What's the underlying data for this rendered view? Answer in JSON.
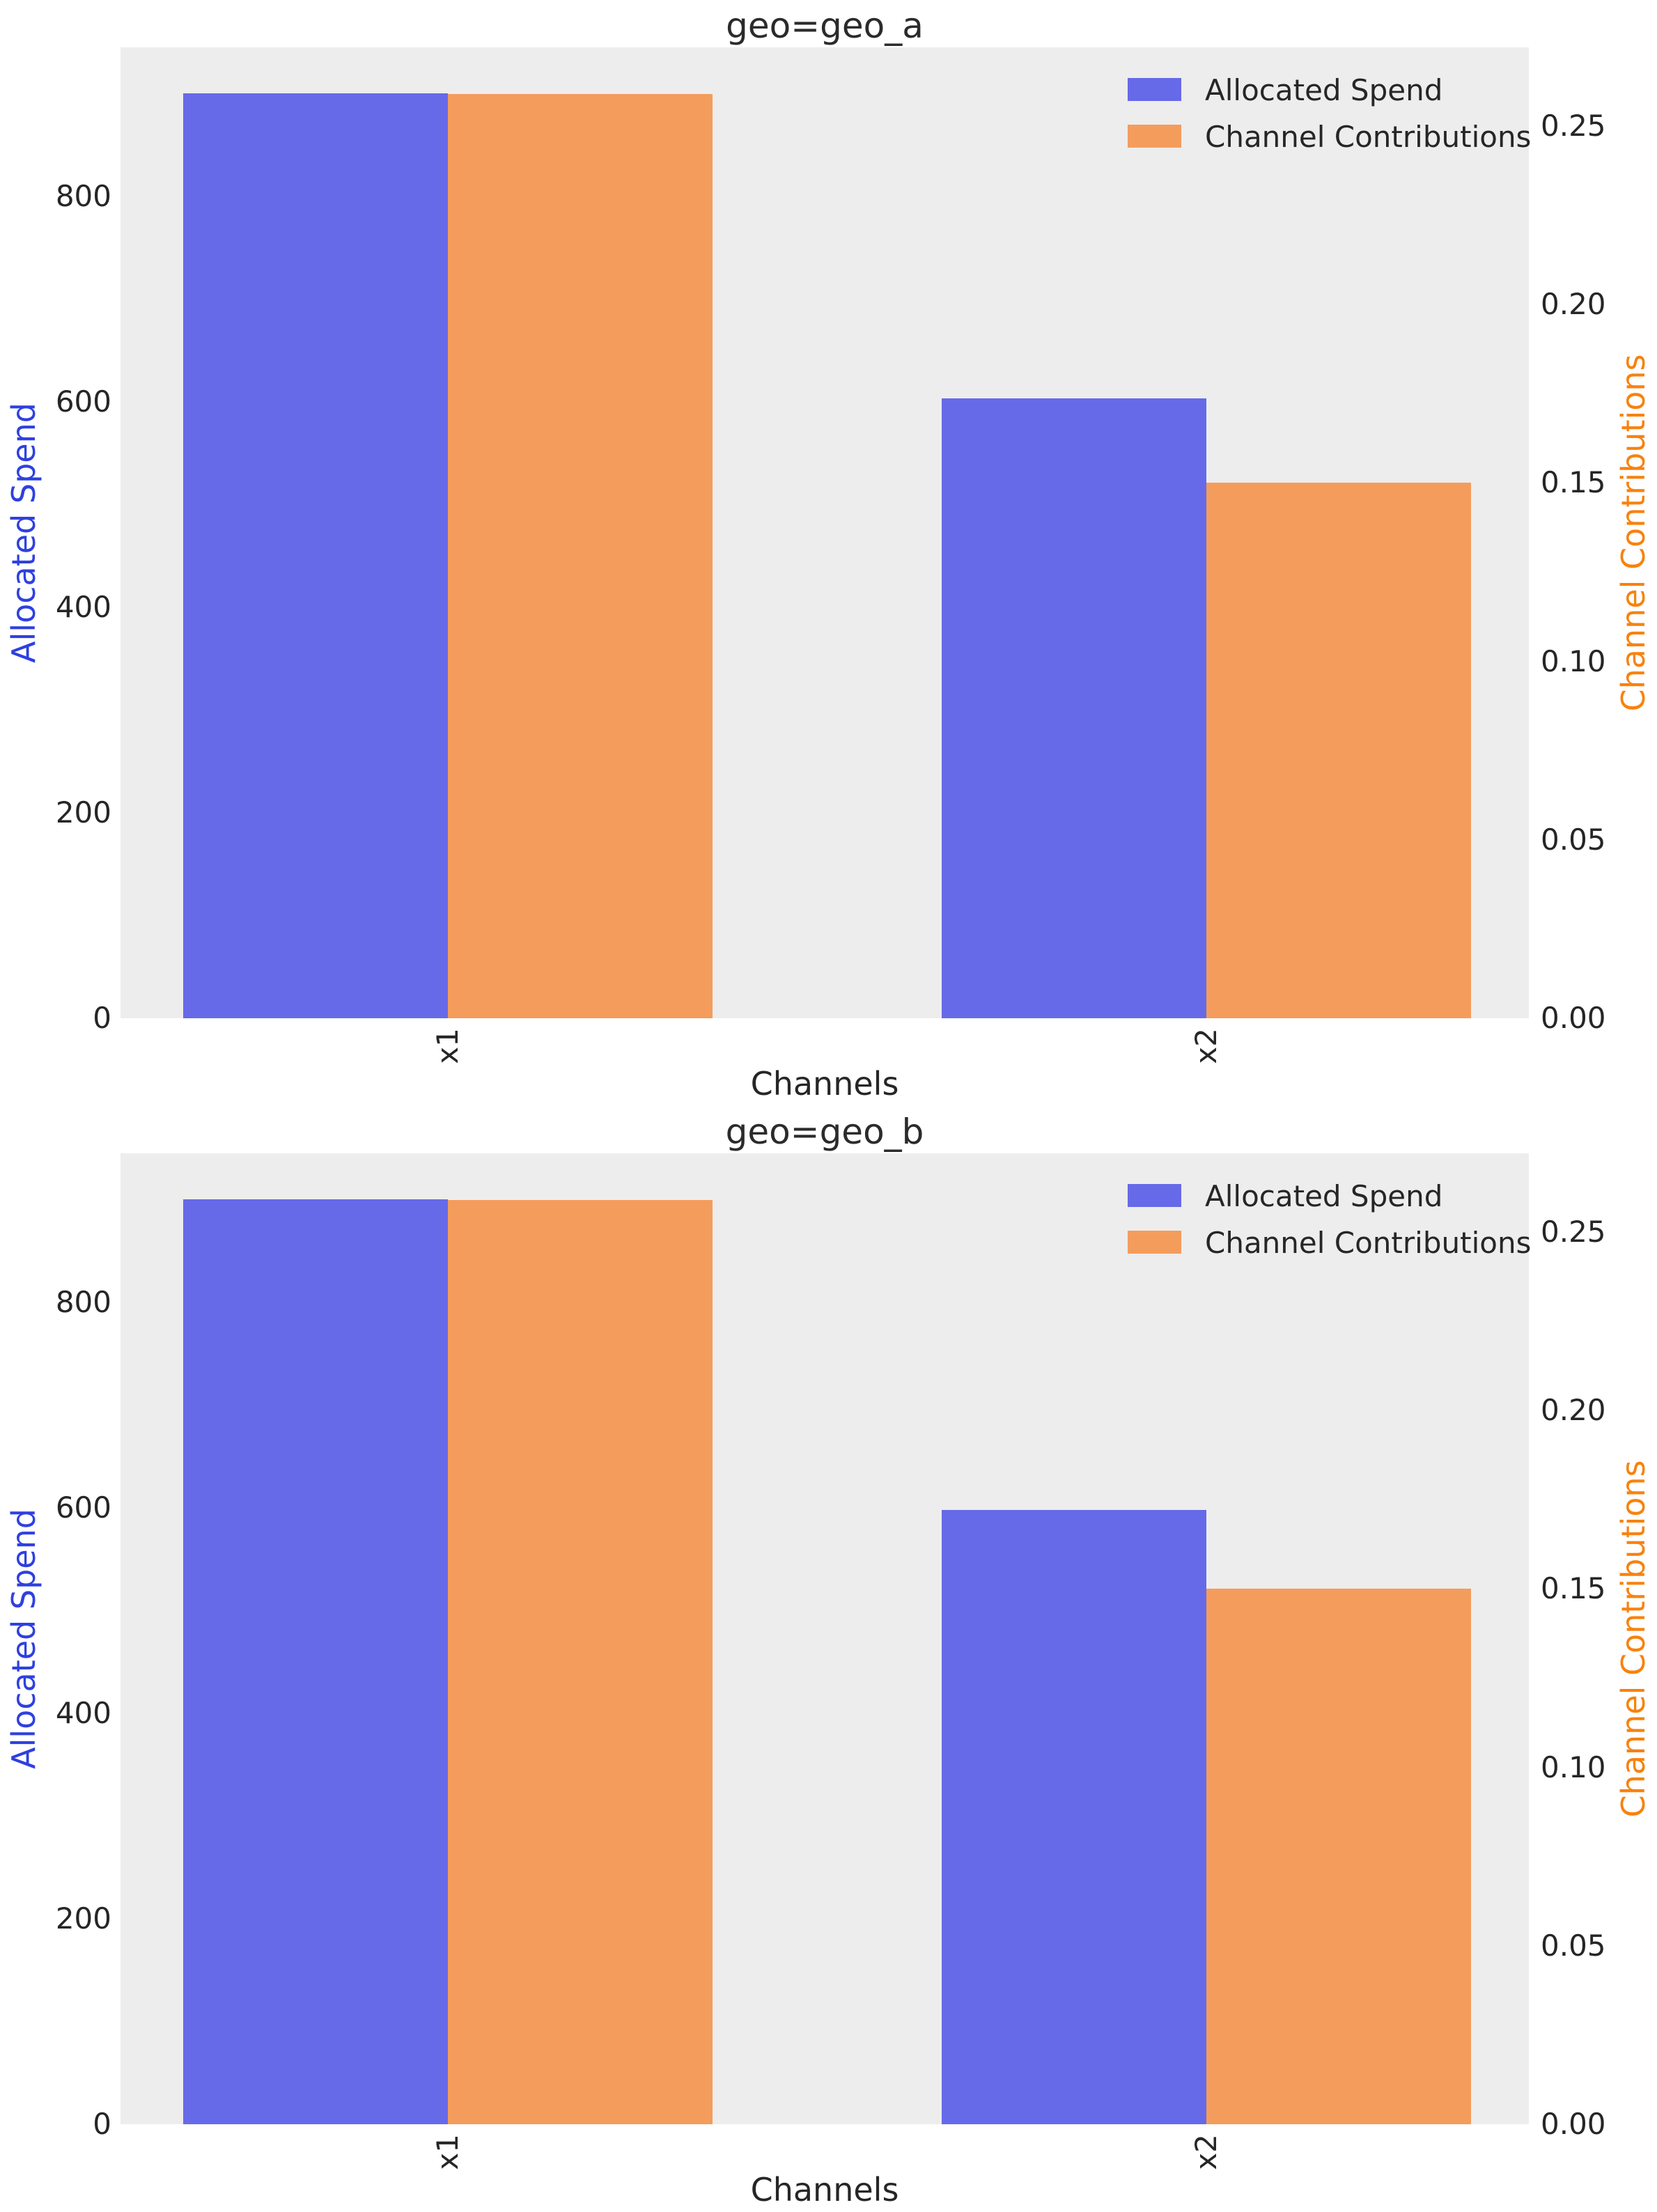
{
  "figure_colors": {
    "background": "#ffffff",
    "plot_background": "#EDEDED",
    "spend_bar": "#666AE8",
    "contrib_bar": "#F49C5C",
    "spend_axis_label": "#2E40E0",
    "contrib_axis_label": "#F8820E",
    "text": "#262626"
  },
  "chart_data": [
    {
      "type": "bar",
      "title": "geo=geo_a",
      "xlabel": "Channels",
      "ylabel_left": "Allocated Spend",
      "ylabel_right": "Channel Contributions",
      "categories": [
        "x1",
        "x2"
      ],
      "series": [
        {
          "name": "Allocated Spend",
          "axis": "left",
          "color_key": "spend_bar",
          "values": [
            900,
            603
          ]
        },
        {
          "name": "Channel Contributions",
          "axis": "right",
          "color_key": "contrib_bar",
          "values": [
            0.259,
            0.15
          ]
        }
      ],
      "ylim_left": [
        0,
        945
      ],
      "ylim_right": [
        0,
        0.272
      ],
      "yticks_left": {
        "values": [
          0,
          200,
          400,
          600,
          800
        ],
        "labels": [
          "0",
          "200",
          "400",
          "600",
          "800"
        ]
      },
      "yticks_right": {
        "values": [
          0.0,
          0.05,
          0.1,
          0.15,
          0.2,
          0.25
        ],
        "labels": [
          "0.00",
          "0.05",
          "0.10",
          "0.15",
          "0.20",
          "0.25"
        ]
      },
      "legend": {
        "position": "upper right",
        "entries": [
          "Allocated Spend",
          "Channel Contributions"
        ]
      },
      "grid": false
    },
    {
      "type": "bar",
      "title": "geo=geo_b",
      "xlabel": "Channels",
      "ylabel_left": "Allocated Spend",
      "ylabel_right": "Channel Contributions",
      "categories": [
        "x1",
        "x2"
      ],
      "series": [
        {
          "name": "Allocated Spend",
          "axis": "left",
          "color_key": "spend_bar",
          "values": [
            900,
            598
          ]
        },
        {
          "name": "Channel Contributions",
          "axis": "right",
          "color_key": "contrib_bar",
          "values": [
            0.259,
            0.15
          ]
        }
      ],
      "ylim_left": [
        0,
        945
      ],
      "ylim_right": [
        0,
        0.272
      ],
      "yticks_left": {
        "values": [
          0,
          200,
          400,
          600,
          800
        ],
        "labels": [
          "0",
          "200",
          "400",
          "600",
          "800"
        ]
      },
      "yticks_right": {
        "values": [
          0.0,
          0.05,
          0.1,
          0.15,
          0.2,
          0.25
        ],
        "labels": [
          "0.00",
          "0.05",
          "0.10",
          "0.15",
          "0.20",
          "0.25"
        ]
      },
      "legend": {
        "position": "upper right",
        "entries": [
          "Allocated Spend",
          "Channel Contributions"
        ]
      },
      "grid": false
    }
  ]
}
